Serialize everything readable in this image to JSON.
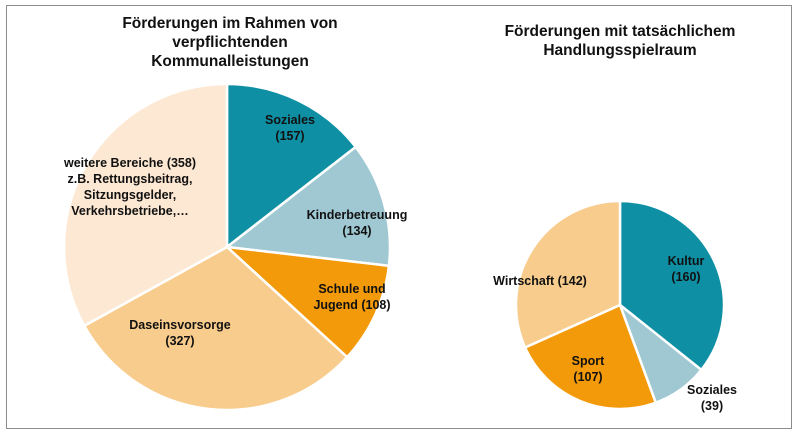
{
  "chart_data": [
    {
      "type": "pie",
      "title": "Förderungen im Rahmen von\nverpflichtenden\nKommunalleistungen",
      "slices": [
        {
          "label": "Soziales",
          "value": 157,
          "color": "#0e8fa3",
          "label_lines": [
            "Soziales",
            "(157)"
          ]
        },
        {
          "label": "Kinderbetreuung",
          "value": 134,
          "color": "#9fc8d2",
          "label_lines": [
            "Kinderbetreuung",
            "(134)"
          ]
        },
        {
          "label": "Schule und Jugend",
          "value": 108,
          "color": "#f39a0b",
          "label_lines": [
            "Schule und",
            "Jugend (108)"
          ]
        },
        {
          "label": "Daseinsvorsorge",
          "value": 327,
          "color": "#f8cc8c",
          "label_lines": [
            "Daseinsvorsorge",
            "(327)"
          ]
        },
        {
          "label": "weitere Bereiche",
          "value": 358,
          "color": "#fde8d3",
          "label_lines": [
            "weitere Bereiche (358)",
            "z.B. Rettungsbeitrag,",
            "Sitzungsgelder,",
            "Verkehrsbetriebe,…"
          ]
        }
      ]
    },
    {
      "type": "pie",
      "title": "Förderungen mit tatsächlichem\nHandlungsspielraum",
      "slices": [
        {
          "label": "Kultur",
          "value": 160,
          "color": "#0e8fa3",
          "label_lines": [
            "Kultur",
            "(160)"
          ]
        },
        {
          "label": "Soziales",
          "value": 39,
          "color": "#9fc8d2",
          "label_lines": [
            "Soziales",
            "(39)"
          ]
        },
        {
          "label": "Sport",
          "value": 107,
          "color": "#f39a0b",
          "label_lines": [
            "Sport",
            "(107)"
          ]
        },
        {
          "label": "Wirtschaft",
          "value": 142,
          "color": "#f8cc8c",
          "label_lines": [
            "Wirtschaft (142)"
          ]
        }
      ]
    }
  ]
}
